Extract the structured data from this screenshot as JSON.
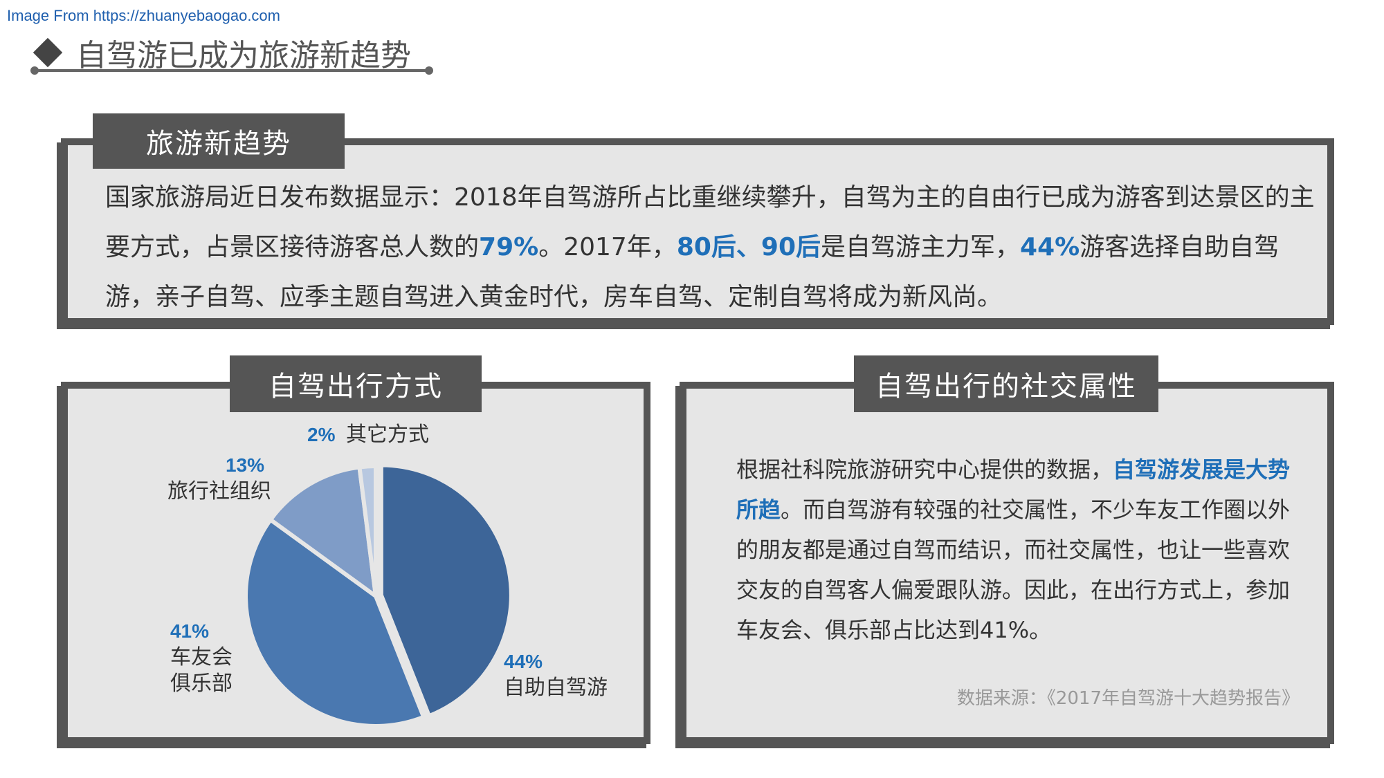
{
  "source_link": "Image From https://zhuanyebaogao.com",
  "page_title": "自驾游已成为旅游新趋势",
  "trend": {
    "tab": "旅游新趋势",
    "p1": "国家旅游局近日发布数据显示：2018年自驾游所占比重继续攀升，自驾为主的自由行已成为游客到达景区的主要方式，占景区接待游客总人数的",
    "h1": "79%",
    "p2": "。2017年，",
    "h2": "80后、90后",
    "p3": "是自驾游主力军，",
    "h3": "44%",
    "p4": "游客选择自助自驾游，亲子自驾、应季主题自驾进入黄金时代，房车自驾、定制自驾将成为新风尚。"
  },
  "mode": {
    "tab": "自驾出行方式"
  },
  "chart_data": {
    "type": "pie",
    "categories": [
      "自助自驾游",
      "车友会俱乐部",
      "旅行社组织",
      "其它方式"
    ],
    "values": [
      44,
      41,
      13,
      2
    ],
    "labels": [
      {
        "pct": "44%",
        "lines": [
          "自助自驾游"
        ]
      },
      {
        "pct": "41%",
        "lines": [
          "车友会",
          "俱乐部"
        ]
      },
      {
        "pct": "13%",
        "lines": [
          "旅行社组织"
        ]
      },
      {
        "pct": "2%",
        "lines": [
          "其它方式"
        ]
      }
    ],
    "colors": [
      "#3d6598",
      "#4a78b0",
      "#7f9cc7",
      "#b8c8e0"
    ]
  },
  "social": {
    "tab": "自驾出行的社交属性",
    "p1": "根据社科院旅游研究中心提供的数据，",
    "h1": "自驾游发展是大势所趋",
    "p2": "。而自驾游有较强的社交属性，不少车友工作圈以外的朋友都是通过自驾而结识，而社交属性，也让一些喜欢交友的自驾客人偏爱跟队游。因此，在出行方式上，参加车友会、俱乐部占比达到41%。",
    "source": "数据来源：《2017年自驾游十大趋势报告》"
  }
}
